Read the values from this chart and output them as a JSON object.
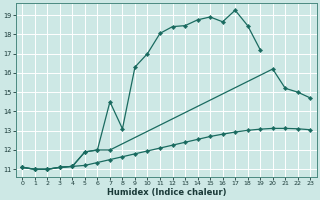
{
  "xlabel": "Humidex (Indice chaleur)",
  "bg_color": "#cde8e5",
  "grid_color": "#b0d8d4",
  "line_color": "#1a6b60",
  "xlim": [
    -0.5,
    23.5
  ],
  "ylim": [
    10.6,
    19.6
  ],
  "yticks": [
    11,
    12,
    13,
    14,
    15,
    16,
    17,
    18,
    19
  ],
  "xticks": [
    0,
    1,
    2,
    3,
    4,
    5,
    6,
    7,
    8,
    9,
    10,
    11,
    12,
    13,
    14,
    15,
    16,
    17,
    18,
    19,
    20,
    21,
    22,
    23
  ],
  "line1_x": [
    0,
    1,
    2,
    3,
    4,
    5,
    6,
    7,
    8,
    9,
    10,
    11,
    12,
    13,
    14,
    15,
    16,
    17,
    18,
    19
  ],
  "line1_y": [
    11.1,
    11.0,
    11.0,
    11.1,
    11.15,
    11.9,
    12.0,
    14.5,
    13.1,
    16.3,
    17.0,
    18.05,
    18.4,
    18.45,
    18.75,
    18.9,
    18.65,
    19.25,
    18.45,
    17.2
  ],
  "line2_x": [
    0,
    1,
    2,
    3,
    4,
    5,
    6,
    7,
    20,
    21,
    22,
    23
  ],
  "line2_y": [
    11.1,
    11.0,
    11.0,
    11.1,
    11.15,
    11.9,
    12.0,
    12.0,
    16.2,
    15.2,
    15.0,
    14.7
  ],
  "line3_x": [
    0,
    1,
    2,
    3,
    4,
    5,
    6,
    7,
    8,
    9,
    10,
    11,
    12,
    13,
    14,
    15,
    16,
    17,
    18,
    19,
    20,
    21,
    22,
    23
  ],
  "line3_y": [
    11.1,
    11.0,
    11.0,
    11.1,
    11.15,
    11.2,
    11.35,
    11.5,
    11.65,
    11.8,
    11.95,
    12.1,
    12.25,
    12.4,
    12.55,
    12.7,
    12.82,
    12.93,
    13.02,
    13.08,
    13.12,
    13.12,
    13.1,
    13.05
  ]
}
